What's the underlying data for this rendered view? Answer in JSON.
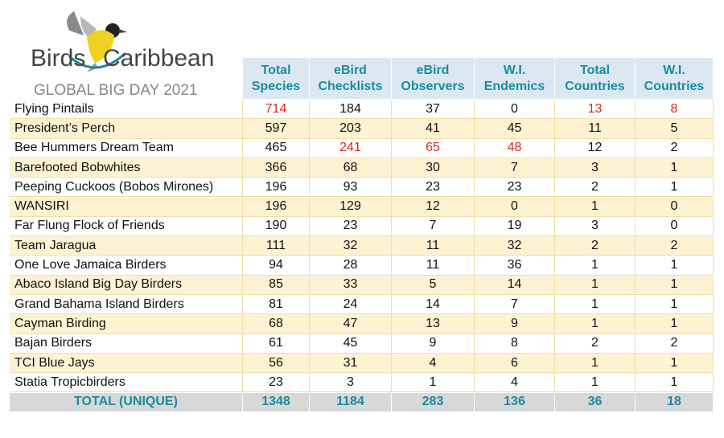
{
  "logo": {
    "word1": "Birds",
    "word2": "Caribbean",
    "subtitle": "GLOBAL BIG DAY 2021"
  },
  "table": {
    "columns": [
      "Total Species",
      "eBird Checklists",
      "eBird Observers",
      "W.I. Endemics",
      "Total Countries",
      "W.I. Countries"
    ],
    "rows": [
      {
        "name": "Flying Pintails",
        "values": [
          714,
          184,
          37,
          0,
          13,
          8
        ]
      },
      {
        "name": "President’s Perch",
        "values": [
          597,
          203,
          41,
          45,
          11,
          5
        ]
      },
      {
        "name": "Bee Hummers Dream Team",
        "values": [
          465,
          241,
          65,
          48,
          12,
          2
        ]
      },
      {
        "name": "Barefooted Bobwhites",
        "values": [
          366,
          68,
          30,
          7,
          3,
          1
        ]
      },
      {
        "name": "Peeping Cuckoos (Bobos Mirones)",
        "values": [
          196,
          93,
          23,
          23,
          2,
          1
        ]
      },
      {
        "name": "WANSIRI",
        "values": [
          196,
          129,
          12,
          0,
          1,
          0
        ]
      },
      {
        "name": "Far Flung Flock of Friends",
        "values": [
          190,
          23,
          7,
          19,
          3,
          0
        ]
      },
      {
        "name": "Team Jaragua",
        "values": [
          111,
          32,
          11,
          32,
          2,
          2
        ]
      },
      {
        "name": "One Love Jamaica Birders",
        "values": [
          94,
          28,
          11,
          36,
          1,
          1
        ]
      },
      {
        "name": "Abaco Island Big Day Birders",
        "values": [
          85,
          33,
          5,
          14,
          1,
          1
        ]
      },
      {
        "name": "Grand Bahama Island Birders",
        "values": [
          81,
          24,
          14,
          7,
          1,
          1
        ]
      },
      {
        "name": "Cayman Birding",
        "values": [
          68,
          47,
          13,
          9,
          1,
          1
        ]
      },
      {
        "name": "Bajan Birders",
        "values": [
          61,
          45,
          9,
          8,
          2,
          2
        ]
      },
      {
        "name": "TCI Blue Jays",
        "values": [
          56,
          31,
          4,
          6,
          1,
          1
        ]
      },
      {
        "name": "Statia Tropicbirders",
        "values": [
          23,
          3,
          1,
          4,
          1,
          1
        ]
      }
    ],
    "total": {
      "name": "TOTAL (UNIQUE)",
      "values": [
        1348,
        1184,
        283,
        136,
        36,
        18
      ]
    },
    "highlighted_cells": [
      [
        0,
        0
      ],
      [
        0,
        4
      ],
      [
        0,
        5
      ],
      [
        2,
        1
      ],
      [
        2,
        2
      ],
      [
        2,
        3
      ]
    ],
    "highlight_color": "#e0251f"
  }
}
